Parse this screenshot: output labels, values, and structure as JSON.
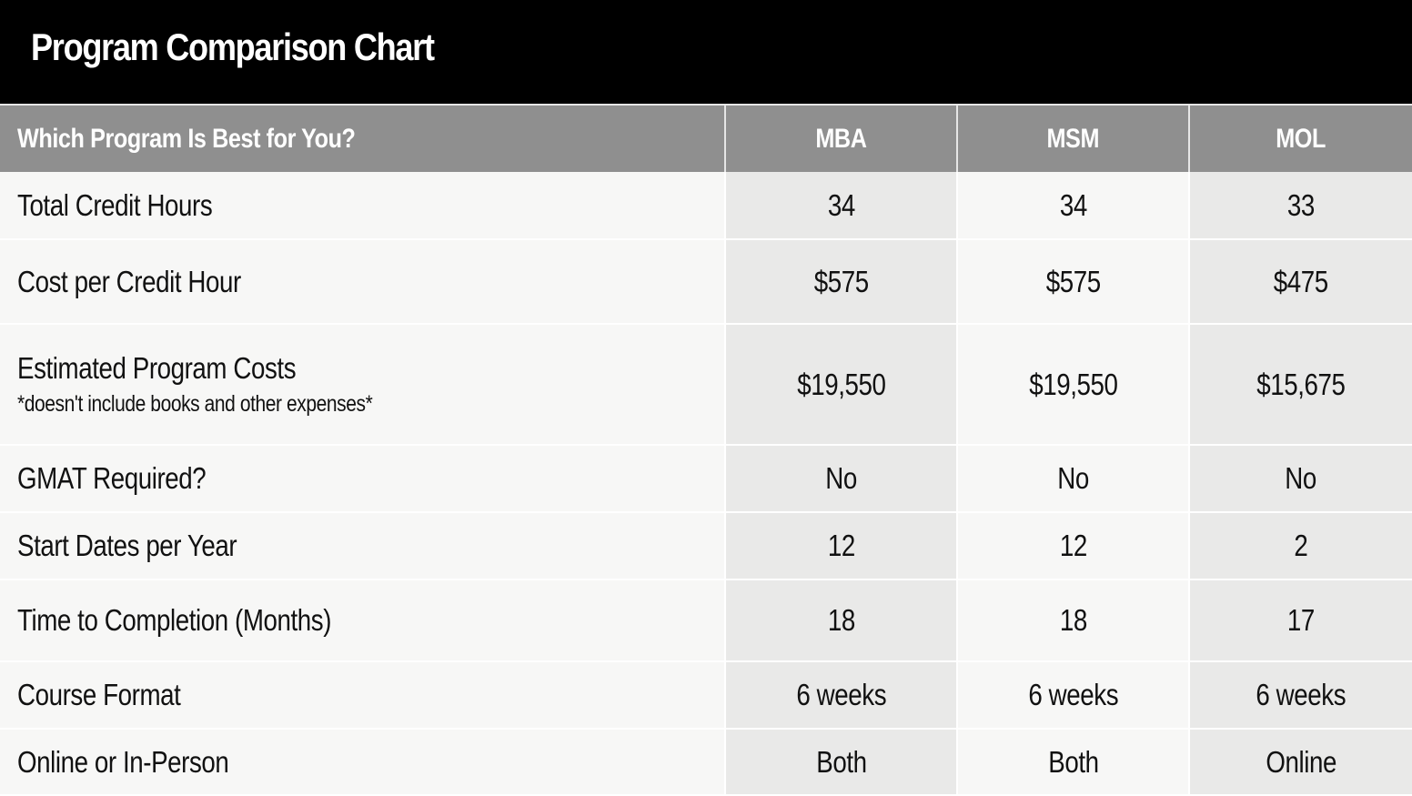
{
  "header": {
    "title": "Program Comparison Chart"
  },
  "table": {
    "columns": [
      "Which Program Is Best for You?",
      "MBA",
      "MSM",
      "MOL"
    ],
    "rows": [
      {
        "label": "Total Credit Hours",
        "note": "",
        "values": [
          "34",
          "34",
          "33"
        ]
      },
      {
        "label": "Cost per Credit Hour",
        "note": "",
        "values": [
          "$575",
          "$575",
          "$475"
        ]
      },
      {
        "label": "Estimated Program Costs",
        "note": "*doesn't include books and other expenses*",
        "values": [
          "$19,550",
          "$19,550",
          "$15,675"
        ]
      },
      {
        "label": "GMAT Required?",
        "note": "",
        "values": [
          "No",
          "No",
          "No"
        ]
      },
      {
        "label": "Start Dates per Year",
        "note": "",
        "values": [
          "12",
          "12",
          "2"
        ]
      },
      {
        "label": "Time to Completion (Months)",
        "note": "",
        "values": [
          "18",
          "18",
          "17"
        ]
      },
      {
        "label": "Course Format",
        "note": "",
        "values": [
          "6 weeks",
          "6 weeks",
          "6 weeks"
        ]
      },
      {
        "label": "Online or In-Person",
        "note": "",
        "values": [
          "Both",
          "Both",
          "Online"
        ]
      }
    ]
  },
  "colors": {
    "title_bar": "#000000",
    "header_row": "#8f8f8f",
    "row_label_bg": "#f7f7f6",
    "value_bg": "#e9e9e8"
  }
}
